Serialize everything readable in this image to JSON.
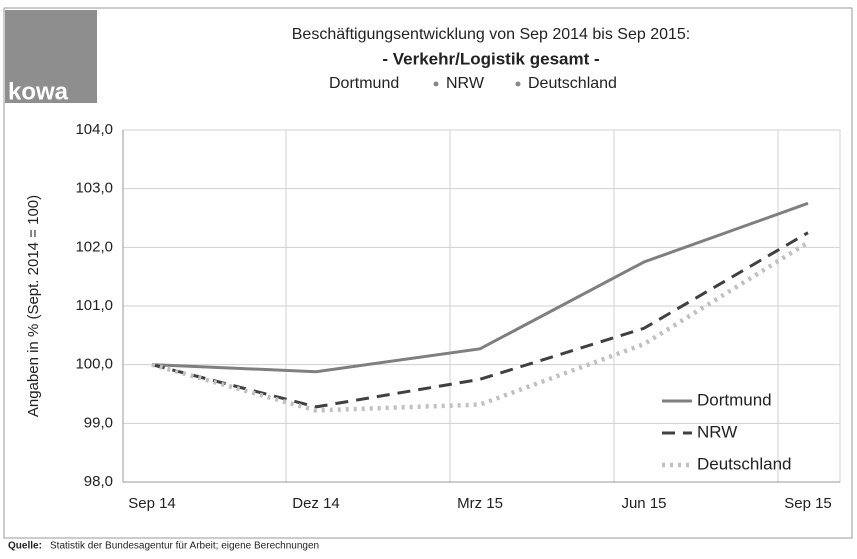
{
  "chart_data": {
    "type": "line",
    "logo": "kowa",
    "title": "Beschäftigungsentwicklung von Sep 2014 bis Sep 2015:",
    "subtitle": "- Verkehr/Logistik gesamt -",
    "y_label": "Angaben in % (Sept. 2014 = 100)",
    "categories": [
      "Sep 14",
      "Dez 14",
      "Mrz 15",
      "Jun 15",
      "Sep 15"
    ],
    "series": [
      {
        "name": "Dortmund",
        "color": "#7f7f7f",
        "dash": "solid",
        "values": [
          100.0,
          99.88,
          100.27,
          101.75,
          102.75
        ]
      },
      {
        "name": "NRW",
        "color": "#404040",
        "dash": "dashed",
        "values": [
          100.0,
          99.28,
          99.75,
          100.62,
          102.25
        ]
      },
      {
        "name": "Deutschland",
        "color": "#c0c0c0",
        "dash": "dotted",
        "values": [
          100.0,
          99.22,
          99.32,
          100.35,
          102.08
        ]
      }
    ],
    "ylim": [
      98,
      104
    ],
    "yticks": [
      {
        "value": 98,
        "label": "98,0"
      },
      {
        "value": 99,
        "label": "99,0"
      },
      {
        "value": 100,
        "label": "100,0"
      },
      {
        "value": 101,
        "label": "101,0"
      },
      {
        "value": 102,
        "label": "102,0"
      },
      {
        "value": 103,
        "label": "103,0"
      },
      {
        "value": 104,
        "label": "104,0"
      }
    ],
    "grid": true,
    "legend": "lower right",
    "source_label": "Quelle:",
    "source": "Statistik der Bundesagentur für Arbeit; eigene Berechnungen"
  }
}
